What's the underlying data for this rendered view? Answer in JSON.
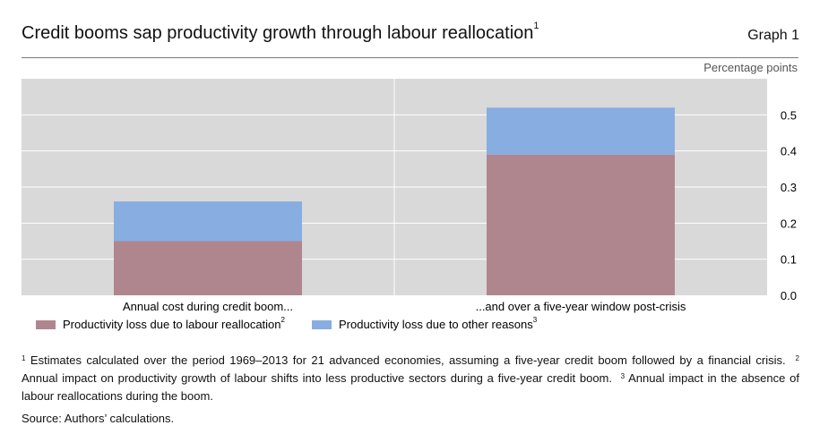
{
  "title": "Credit booms sap productivity growth through labour reallocation",
  "title_sup": "1",
  "graph_label": "Graph 1",
  "unit_label": "Percentage points",
  "chart_data": {
    "type": "bar",
    "stacked": true,
    "categories": [
      "Annual cost during credit boom...",
      "...and over a five-year window post-crisis"
    ],
    "series": [
      {
        "name": "Productivity loss due to labour reallocation",
        "values": [
          0.15,
          0.39
        ],
        "color": "#b0868e"
      },
      {
        "name": "Productivity loss due to other reasons",
        "values": [
          0.11,
          0.13
        ],
        "color": "#88ade0"
      }
    ],
    "yticks": [
      "0.5",
      "0.4",
      "0.3",
      "0.2",
      "0.1",
      "0.0"
    ],
    "ylim": [
      0,
      0.6
    ],
    "grid": true,
    "plot_background": "#d9d9d9",
    "legend_position": "bottom-left"
  },
  "legend": [
    {
      "label": "Productivity loss due to labour reallocation",
      "sup": "2",
      "color": "#b0868e"
    },
    {
      "label": "Productivity loss due to other reasons",
      "sup": "3",
      "color": "#88ade0"
    }
  ],
  "notes": {
    "n1_mark": "1",
    "n1": "Estimates calculated over the period 1969–2013 for 21 advanced economies, assuming a five-year credit boom followed by a financial crisis.",
    "n2_mark": "2",
    "n2": "Annual impact on productivity growth of labour shifts into less productive sectors during a five-year credit boom.",
    "n3_mark": "3",
    "n3": "Annual impact in the absence of labour reallocations during the boom."
  },
  "source": "Source: Authors’ calculations."
}
